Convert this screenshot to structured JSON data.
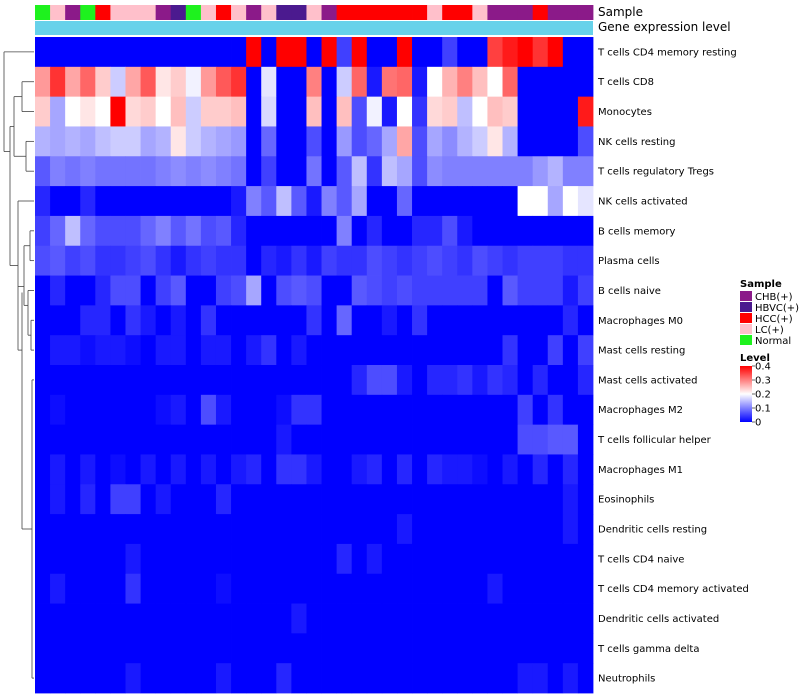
{
  "chart_data": {
    "type": "heatmap",
    "annotation_tracks": [
      "Sample",
      "Gene expression level"
    ],
    "rows": [
      "T cells CD4 memory resting",
      "T cells CD8",
      "Monocytes",
      "NK cells resting",
      "T cells regulatory  Tregs",
      "NK cells activated",
      "B cells memory",
      "Plasma cells",
      "B cells naive",
      "Macrophages M0",
      "Mast cells resting",
      "Mast cells activated",
      "Macrophages M2",
      "T cells follicular helper",
      "Macrophages M1",
      "Eosinophils",
      "Dendritic cells resting",
      "T cells CD4 naive",
      "T cells CD4 memory activated",
      "Dendritic cells activated",
      "T cells gamma delta",
      "Neutrophils"
    ],
    "sample_groups": [
      "Normal",
      "LC(+)",
      "CHB(+)",
      "Normal",
      "HCC(+)",
      "LC(+)",
      "LC(+)",
      "LC(+)",
      "CHB(+)",
      "HBVC(+)",
      "Normal",
      "LC(+)",
      "HCC(+)",
      "LC(+)",
      "CHB(+)",
      "LC(+)",
      "HBVC(+)",
      "HBVC(+)",
      "LC(+)",
      "CHB(+)",
      "HCC(+)",
      "HCC(+)",
      "HCC(+)",
      "HCC(+)",
      "HCC(+)",
      "HCC(+)",
      "LC(+)",
      "HCC(+)",
      "HCC(+)",
      "LC(+)",
      "CHB(+)",
      "CHB(+)",
      "CHB(+)",
      "HCC(+)",
      "CHB(+)",
      "CHB(+)",
      "CHB(+)"
    ],
    "sample_colors": {
      "CHB(+)": "#8B1A89",
      "HBVC(+)": "#4B1A8F",
      "HCC(+)": "#FF0000",
      "LC(+)": "#FFC0CB",
      "Normal": "#1EF21E"
    },
    "expression_level_color": "#67D2EA",
    "values": [
      [
        0.0,
        0.0,
        0.0,
        0.0,
        0.0,
        0.0,
        0.0,
        0.0,
        0.0,
        0.0,
        0.0,
        0.0,
        0.0,
        0.0,
        0.4,
        0.0,
        0.4,
        0.4,
        0.0,
        0.4,
        0.05,
        0.4,
        0.0,
        0.0,
        0.4,
        0.0,
        0.0,
        0.05,
        0.0,
        0.0,
        0.35,
        0.38,
        0.4,
        0.36,
        0.4,
        0.0,
        0.0
      ],
      [
        0.28,
        0.36,
        0.27,
        0.32,
        0.24,
        0.16,
        0.27,
        0.33,
        0.22,
        0.24,
        0.19,
        0.28,
        0.33,
        0.36,
        0.0,
        0.18,
        0.0,
        0.0,
        0.3,
        0.0,
        0.16,
        0.32,
        0.02,
        0.31,
        0.32,
        0.02,
        0.2,
        0.26,
        0.3,
        0.25,
        0.2,
        0.32,
        0.0,
        0.0,
        0.0,
        0.0,
        0.0
      ],
      [
        0.24,
        0.13,
        0.2,
        0.22,
        0.2,
        0.4,
        0.23,
        0.24,
        0.2,
        0.25,
        0.16,
        0.24,
        0.24,
        0.25,
        0.0,
        0.17,
        0.0,
        0.0,
        0.25,
        0.0,
        0.25,
        0.06,
        0.19,
        0.02,
        0.2,
        0.04,
        0.23,
        0.24,
        0.15,
        0.2,
        0.25,
        0.24,
        0.0,
        0.0,
        0.0,
        0.0,
        0.38
      ],
      [
        0.14,
        0.13,
        0.14,
        0.13,
        0.15,
        0.16,
        0.16,
        0.13,
        0.14,
        0.22,
        0.16,
        0.14,
        0.13,
        0.12,
        0.0,
        0.08,
        0.0,
        0.0,
        0.06,
        0.0,
        0.12,
        0.06,
        0.08,
        0.13,
        0.27,
        0.06,
        0.13,
        0.11,
        0.14,
        0.16,
        0.22,
        0.14,
        0.0,
        0.0,
        0.0,
        0.0,
        0.06
      ],
      [
        0.07,
        0.1,
        0.09,
        0.1,
        0.09,
        0.09,
        0.09,
        0.09,
        0.1,
        0.11,
        0.1,
        0.11,
        0.1,
        0.09,
        0.0,
        0.05,
        0.0,
        0.0,
        0.09,
        0.0,
        0.07,
        0.15,
        0.04,
        0.15,
        0.13,
        0.06,
        0.11,
        0.1,
        0.1,
        0.1,
        0.1,
        0.1,
        0.1,
        0.12,
        0.14,
        0.1,
        0.1
      ],
      [
        0.03,
        0.0,
        0.0,
        0.03,
        0.0,
        0.0,
        0.0,
        0.0,
        0.0,
        0.0,
        0.0,
        0.0,
        0.0,
        0.02,
        0.1,
        0.07,
        0.15,
        0.07,
        0.02,
        0.1,
        0.07,
        0.13,
        0.0,
        0.0,
        0.08,
        0.0,
        0.0,
        0.0,
        0.0,
        0.0,
        0.0,
        0.0,
        0.2,
        0.2,
        0.13,
        0.2,
        0.18
      ],
      [
        0.05,
        0.08,
        0.15,
        0.08,
        0.06,
        0.06,
        0.06,
        0.08,
        0.1,
        0.07,
        0.09,
        0.06,
        0.07,
        0.03,
        0.0,
        0.0,
        0.0,
        0.0,
        0.0,
        0.0,
        0.1,
        0.0,
        0.03,
        0.0,
        0.0,
        0.03,
        0.03,
        0.06,
        0.02,
        0.0,
        0.0,
        0.0,
        0.0,
        0.0,
        0.0,
        0.0,
        0.0
      ],
      [
        0.06,
        0.07,
        0.05,
        0.06,
        0.04,
        0.04,
        0.05,
        0.06,
        0.04,
        0.02,
        0.04,
        0.05,
        0.04,
        0.04,
        0.0,
        0.03,
        0.02,
        0.04,
        0.02,
        0.05,
        0.04,
        0.04,
        0.06,
        0.05,
        0.04,
        0.05,
        0.06,
        0.05,
        0.04,
        0.06,
        0.05,
        0.04,
        0.05,
        0.05,
        0.05,
        0.04,
        0.04
      ],
      [
        0.0,
        0.03,
        0.0,
        0.0,
        0.03,
        0.06,
        0.06,
        0.0,
        0.05,
        0.07,
        0.0,
        0.0,
        0.05,
        0.06,
        0.13,
        0.0,
        0.06,
        0.07,
        0.06,
        0.0,
        0.0,
        0.07,
        0.06,
        0.05,
        0.06,
        0.05,
        0.05,
        0.05,
        0.05,
        0.05,
        0.0,
        0.07,
        0.05,
        0.05,
        0.05,
        0.02,
        0.05
      ],
      [
        0.0,
        0.0,
        0.0,
        0.03,
        0.03,
        0.0,
        0.04,
        0.02,
        0.0,
        0.02,
        0.0,
        0.04,
        0.0,
        0.0,
        0.0,
        0.0,
        0.0,
        0.0,
        0.04,
        0.0,
        0.08,
        0.0,
        0.0,
        0.02,
        0.0,
        0.04,
        0.0,
        0.0,
        0.0,
        0.0,
        0.0,
        0.0,
        0.0,
        0.0,
        0.0,
        0.03,
        0.0
      ],
      [
        0.0,
        0.02,
        0.02,
        0.01,
        0.02,
        0.02,
        0.01,
        0.0,
        0.02,
        0.02,
        0.0,
        0.02,
        0.02,
        0.0,
        0.02,
        0.04,
        0.0,
        0.02,
        0.0,
        0.0,
        0.0,
        0.0,
        0.0,
        0.0,
        0.0,
        0.0,
        0.0,
        0.0,
        0.0,
        0.0,
        0.0,
        0.04,
        0.0,
        0.0,
        0.05,
        0.0,
        0.05
      ],
      [
        0.0,
        0.0,
        0.0,
        0.0,
        0.0,
        0.0,
        0.0,
        0.0,
        0.0,
        0.0,
        0.0,
        0.0,
        0.0,
        0.0,
        0.0,
        0.0,
        0.0,
        0.0,
        0.0,
        0.0,
        0.0,
        0.03,
        0.06,
        0.06,
        0.02,
        0.0,
        0.03,
        0.03,
        0.04,
        0.02,
        0.04,
        0.03,
        0.0,
        0.03,
        0.0,
        0.0,
        0.03
      ],
      [
        0.0,
        0.01,
        0.0,
        0.0,
        0.0,
        0.0,
        0.0,
        0.0,
        0.01,
        0.02,
        0.0,
        0.06,
        0.02,
        0.0,
        0.0,
        0.0,
        0.01,
        0.04,
        0.04,
        0.0,
        0.0,
        0.0,
        0.0,
        0.0,
        0.0,
        0.0,
        0.0,
        0.0,
        0.0,
        0.0,
        0.0,
        0.0,
        0.05,
        0.0,
        0.04,
        0.0,
        0.0
      ],
      [
        0.0,
        0.0,
        0.0,
        0.0,
        0.0,
        0.0,
        0.0,
        0.0,
        0.0,
        0.0,
        0.0,
        0.0,
        0.0,
        0.0,
        0.0,
        0.0,
        0.02,
        0.0,
        0.0,
        0.0,
        0.0,
        0.0,
        0.0,
        0.0,
        0.0,
        0.0,
        0.0,
        0.0,
        0.0,
        0.0,
        0.0,
        0.0,
        0.06,
        0.06,
        0.07,
        0.07,
        0.0
      ],
      [
        0.0,
        0.02,
        0.0,
        0.02,
        0.0,
        0.01,
        0.0,
        0.02,
        0.0,
        0.02,
        0.0,
        0.02,
        0.0,
        0.02,
        0.03,
        0.0,
        0.04,
        0.04,
        0.02,
        0.0,
        0.0,
        0.02,
        0.03,
        0.0,
        0.03,
        0.0,
        0.03,
        0.02,
        0.02,
        0.01,
        0.0,
        0.02,
        0.0,
        0.03,
        0.0,
        0.03,
        0.0
      ],
      [
        0.0,
        0.02,
        0.0,
        0.03,
        0.0,
        0.05,
        0.05,
        0.0,
        0.02,
        0.0,
        0.0,
        0.0,
        0.03,
        0.0,
        0.0,
        0.0,
        0.0,
        0.0,
        0.0,
        0.0,
        0.0,
        0.0,
        0.0,
        0.0,
        0.0,
        0.0,
        0.0,
        0.0,
        0.0,
        0.0,
        0.0,
        0.0,
        0.0,
        0.0,
        0.0,
        0.02,
        0.0
      ],
      [
        0.0,
        0.0,
        0.0,
        0.0,
        0.0,
        0.0,
        0.0,
        0.0,
        0.0,
        0.0,
        0.0,
        0.0,
        0.0,
        0.0,
        0.0,
        0.0,
        0.0,
        0.0,
        0.0,
        0.0,
        0.0,
        0.0,
        0.0,
        0.0,
        0.02,
        0.0,
        0.0,
        0.0,
        0.0,
        0.0,
        0.0,
        0.0,
        0.0,
        0.0,
        0.0,
        0.02,
        0.0
      ],
      [
        0.0,
        0.0,
        0.0,
        0.0,
        0.0,
        0.0,
        0.02,
        0.0,
        0.0,
        0.0,
        0.0,
        0.0,
        0.0,
        0.0,
        0.0,
        0.0,
        0.0,
        0.0,
        0.0,
        0.0,
        0.03,
        0.0,
        0.02,
        0.0,
        0.0,
        0.0,
        0.0,
        0.0,
        0.0,
        0.0,
        0.0,
        0.0,
        0.0,
        0.0,
        0.0,
        0.0,
        0.0
      ],
      [
        0.0,
        0.02,
        0.0,
        0.0,
        0.0,
        0.0,
        0.04,
        0.0,
        0.0,
        0.0,
        0.0,
        0.0,
        0.01,
        0.0,
        0.0,
        0.0,
        0.0,
        0.0,
        0.0,
        0.0,
        0.0,
        0.0,
        0.0,
        0.0,
        0.0,
        0.0,
        0.0,
        0.0,
        0.0,
        0.0,
        0.02,
        0.0,
        0.0,
        0.0,
        0.0,
        0.0,
        0.0
      ],
      [
        0.0,
        0.0,
        0.0,
        0.0,
        0.0,
        0.0,
        0.0,
        0.0,
        0.0,
        0.0,
        0.0,
        0.0,
        0.0,
        0.0,
        0.0,
        0.0,
        0.0,
        0.02,
        0.0,
        0.0,
        0.0,
        0.0,
        0.0,
        0.0,
        0.0,
        0.0,
        0.0,
        0.0,
        0.0,
        0.0,
        0.0,
        0.0,
        0.0,
        0.0,
        0.0,
        0.0,
        0.0
      ],
      [
        0.0,
        0.0,
        0.0,
        0.0,
        0.0,
        0.0,
        0.0,
        0.0,
        0.0,
        0.0,
        0.0,
        0.0,
        0.0,
        0.0,
        0.0,
        0.0,
        0.0,
        0.0,
        0.0,
        0.0,
        0.0,
        0.0,
        0.0,
        0.0,
        0.0,
        0.0,
        0.0,
        0.0,
        0.0,
        0.0,
        0.0,
        0.0,
        0.0,
        0.0,
        0.0,
        0.0,
        0.0
      ],
      [
        0.0,
        0.0,
        0.0,
        0.0,
        0.0,
        0.0,
        0.02,
        0.0,
        0.0,
        0.0,
        0.0,
        0.0,
        0.02,
        0.0,
        0.0,
        0.0,
        0.03,
        0.0,
        0.0,
        0.0,
        0.0,
        0.0,
        0.0,
        0.0,
        0.0,
        0.0,
        0.0,
        0.0,
        0.0,
        0.0,
        0.0,
        0.0,
        0.02,
        0.02,
        0.0,
        0.02,
        0.0
      ]
    ],
    "legend": {
      "sample_title": "Sample",
      "sample_entries": [
        "CHB(+)",
        "HBVC(+)",
        "HCC(+)",
        "LC(+)",
        "Normal"
      ],
      "level_title": "Level",
      "level_ticks": [
        0.4,
        0.3,
        0.2,
        0.1,
        0
      ],
      "level_range": [
        0,
        0.4
      ],
      "color_low": "#0000FF",
      "color_mid": "#FFFFFF",
      "color_high": "#FF0000"
    },
    "dendrogram": "rows"
  }
}
